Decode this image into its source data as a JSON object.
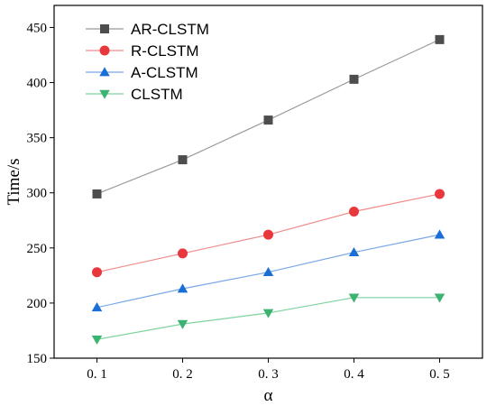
{
  "chart_data": {
    "type": "line",
    "xlabel": "α",
    "ylabel": "Time/s",
    "categories": [
      "0. 1",
      "0. 2",
      "0. 3",
      "0. 4",
      "0. 5"
    ],
    "x": [
      0.1,
      0.2,
      0.3,
      0.4,
      0.5
    ],
    "xlim": [
      0.05,
      0.55
    ],
    "ylim": [
      150,
      470
    ],
    "yticks": [
      150,
      200,
      250,
      300,
      350,
      400,
      450
    ],
    "grid": false,
    "legend": "top-left",
    "series": [
      {
        "name": "AR-CLSTM",
        "marker": "square",
        "color": "#4d4d4d",
        "line_color": "#9a9a9a",
        "values": [
          299,
          330,
          366,
          403,
          439
        ]
      },
      {
        "name": "R-CLSTM",
        "marker": "circle",
        "color": "#e8383d",
        "line_color": "#ee8b8b",
        "values": [
          228,
          245,
          262,
          283,
          299
        ]
      },
      {
        "name": "A-CLSTM",
        "marker": "triangle-up",
        "color": "#1a6fd6",
        "line_color": "#7aa8e6",
        "values": [
          196,
          213,
          228,
          246,
          262
        ]
      },
      {
        "name": "CLSTM",
        "marker": "triangle-down",
        "color": "#3cb371",
        "line_color": "#7fd2a0",
        "values": [
          167,
          181,
          191,
          205,
          205
        ]
      }
    ]
  }
}
